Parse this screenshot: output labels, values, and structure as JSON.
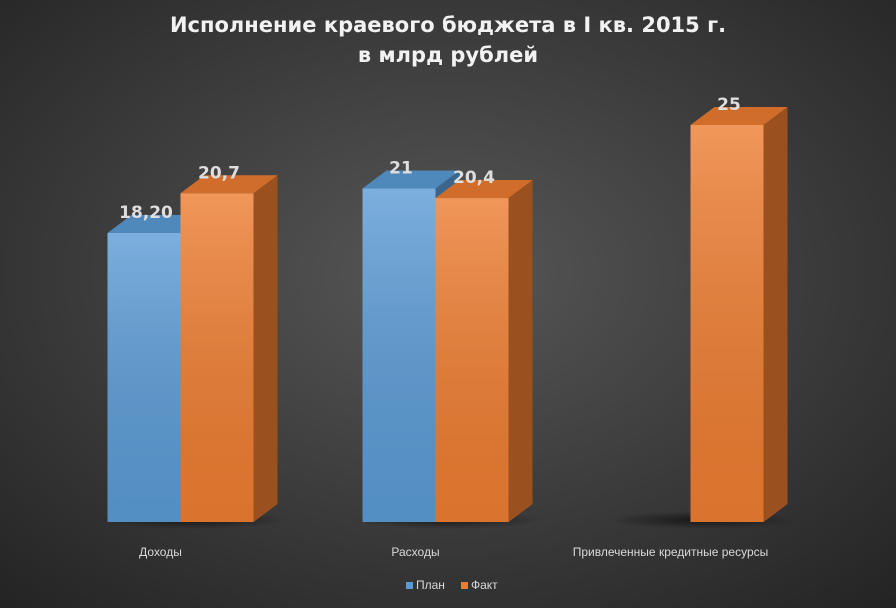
{
  "chart_data": {
    "type": "bar3d",
    "title": "Исполнение краевого бюджета в I кв. 2015 г.",
    "subtitle": "в млрд рублей",
    "categories": [
      "Доходы",
      "Расходы",
      "Привлеченные кредитные ресурсы"
    ],
    "series": [
      {
        "name": "План",
        "color": "#5b9bd5",
        "values": [
          18.2,
          21,
          null
        ],
        "value_labels": [
          "18,20",
          "21",
          null
        ]
      },
      {
        "name": "Факт",
        "color": "#ed7d31",
        "values": [
          20.7,
          20.4,
          25
        ],
        "value_labels": [
          "20,7",
          "20,4",
          "25"
        ]
      }
    ],
    "legend": "bottom"
  }
}
